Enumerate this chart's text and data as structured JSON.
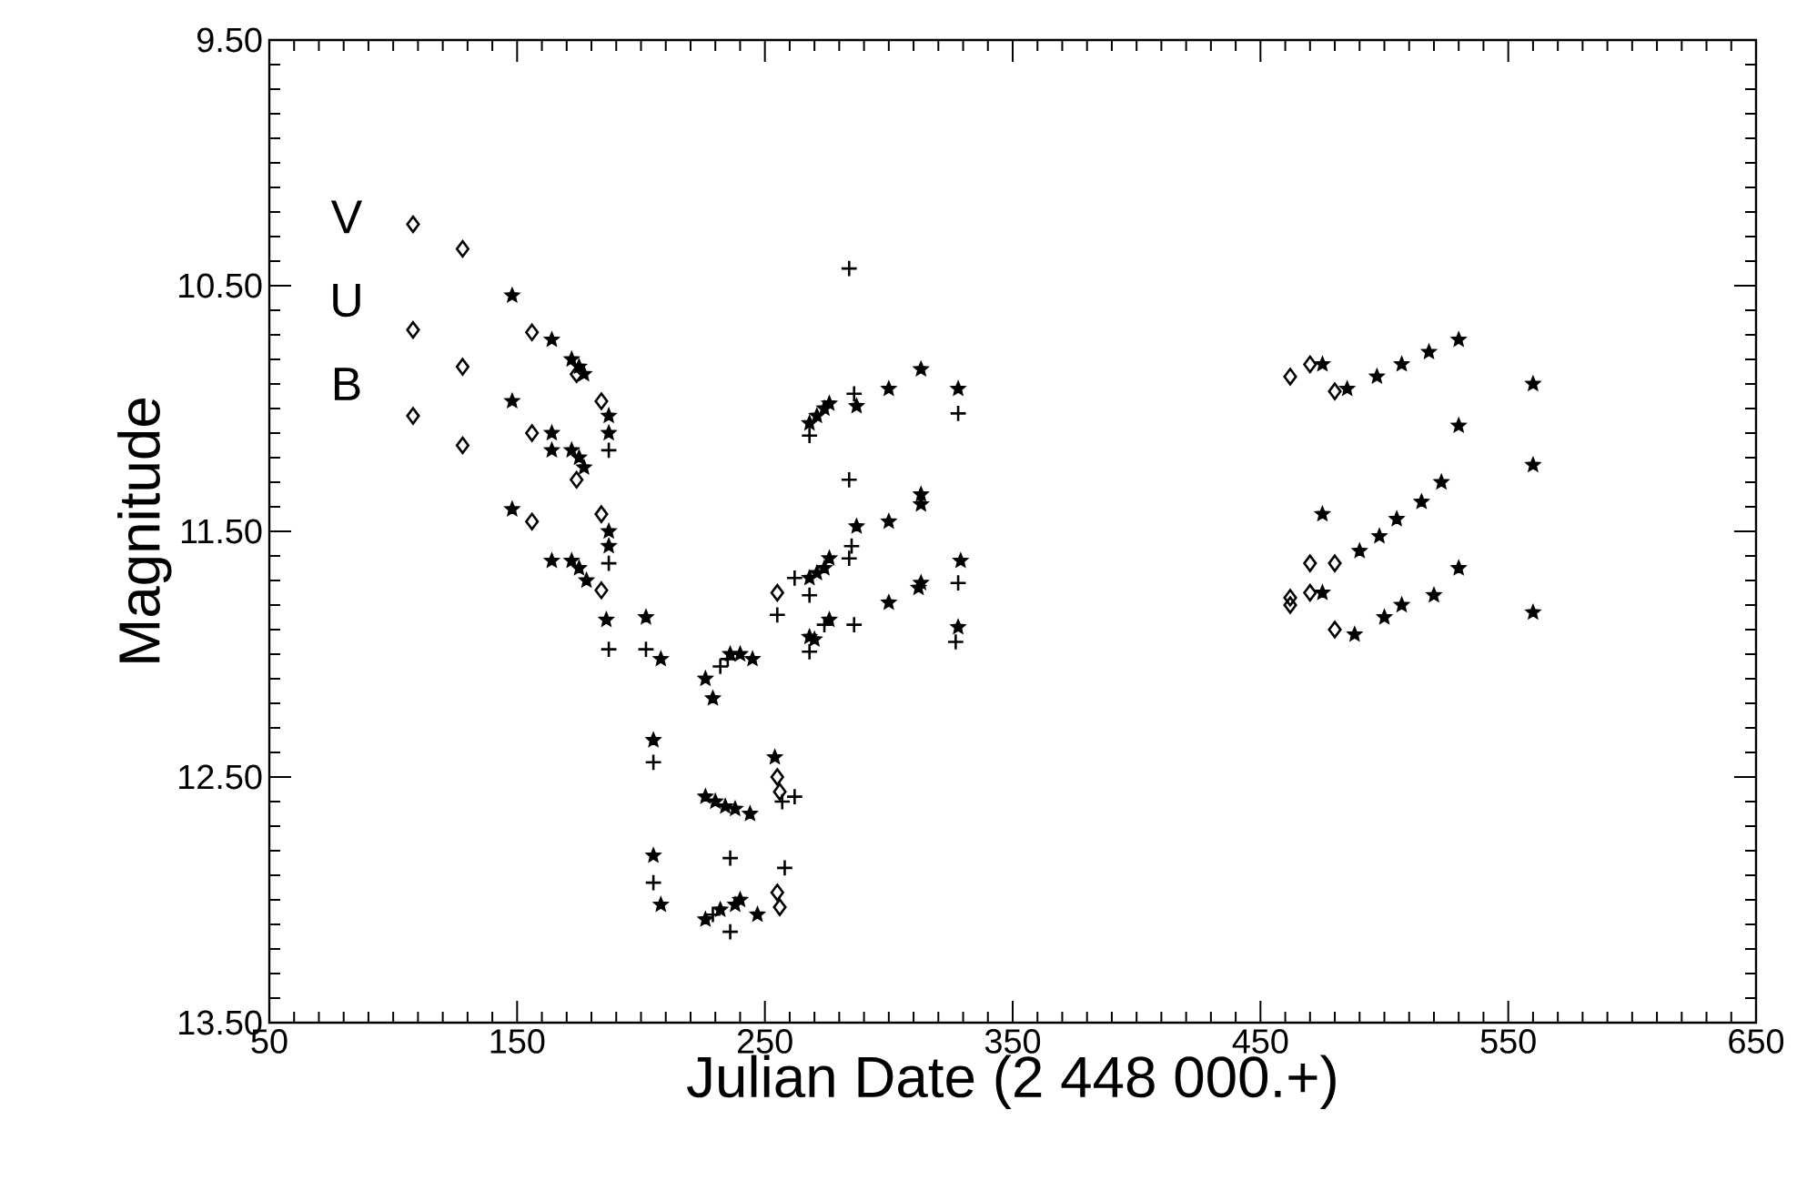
{
  "chart_data": {
    "type": "scatter",
    "xlabel": "Julian Date (2 448 000.+)",
    "ylabel": "Magnitude",
    "xlim": [
      50,
      650
    ],
    "xticks": [
      50,
      150,
      250,
      350,
      450,
      550,
      650
    ],
    "ylim": [
      13.5,
      9.5
    ],
    "yticks": [
      {
        "value": 9.5,
        "label": "9.50"
      },
      {
        "value": 10.5,
        "label": "10.50"
      },
      {
        "value": 11.5,
        "label": "11.50"
      },
      {
        "value": 12.5,
        "label": "12.50"
      },
      {
        "value": 13.5,
        "label": "13.50"
      }
    ],
    "grid": false,
    "annotations": [
      "V",
      "U",
      "B"
    ],
    "series": [
      {
        "marker": "diamond",
        "color": "#000000",
        "x": [
          108,
          108,
          108,
          128,
          128,
          128,
          156,
          156,
          156,
          174,
          174,
          184,
          184,
          184,
          255,
          255,
          256,
          255,
          256,
          462,
          470,
          480,
          462,
          462,
          470,
          470,
          480,
          480
        ],
        "values": [
          10.25,
          10.68,
          11.03,
          10.35,
          10.83,
          11.15,
          10.69,
          11.1,
          11.46,
          10.86,
          11.29,
          10.97,
          11.43,
          11.74,
          11.75,
          12.5,
          12.56,
          12.97,
          13.03,
          10.87,
          10.82,
          10.93,
          11.8,
          11.77,
          11.75,
          11.63,
          11.63,
          11.9
        ]
      },
      {
        "marker": "star",
        "color": "#000000",
        "x": [
          148,
          148,
          148,
          164,
          164,
          164,
          164,
          172,
          175,
          177,
          172,
          175,
          177,
          172,
          175,
          178,
          187,
          187,
          187,
          187,
          186,
          202,
          205,
          205,
          208,
          226,
          229,
          236,
          240,
          245,
          226,
          230,
          234,
          238,
          244,
          254,
          208,
          226,
          232,
          238,
          240,
          247,
          268,
          271,
          274,
          276,
          287,
          300,
          313,
          328,
          313,
          313,
          300,
          287,
          276,
          274,
          271,
          268,
          329,
          313,
          312,
          300,
          276,
          268,
          270,
          328,
          475,
          485,
          497,
          507,
          518,
          530,
          560,
          475,
          490,
          498,
          505,
          515,
          523,
          530,
          560,
          475,
          488,
          500,
          507,
          520,
          530,
          560
        ],
        "values": [
          10.54,
          10.97,
          11.41,
          10.72,
          11.1,
          11.17,
          11.62,
          10.8,
          10.83,
          10.86,
          11.17,
          11.2,
          11.24,
          11.62,
          11.65,
          11.7,
          11.03,
          11.1,
          11.5,
          11.56,
          11.86,
          11.85,
          12.35,
          12.82,
          12.02,
          12.1,
          12.18,
          12.0,
          12.0,
          12.02,
          12.58,
          12.6,
          12.62,
          12.63,
          12.65,
          12.42,
          13.02,
          13.08,
          13.04,
          13.02,
          13.0,
          13.06,
          11.06,
          11.03,
          11.0,
          10.98,
          10.99,
          10.92,
          10.84,
          10.92,
          11.35,
          11.39,
          11.46,
          11.48,
          11.61,
          11.65,
          11.67,
          11.69,
          11.62,
          11.71,
          11.73,
          11.79,
          11.86,
          11.93,
          11.94,
          11.89,
          10.82,
          10.92,
          10.87,
          10.82,
          10.77,
          10.72,
          10.9,
          11.43,
          11.58,
          11.52,
          11.45,
          11.38,
          11.3,
          11.07,
          11.23,
          11.75,
          11.92,
          11.85,
          11.8,
          11.76,
          11.65,
          11.83
        ]
      },
      {
        "marker": "cross",
        "color": "#000000",
        "x": [
          187,
          187,
          187,
          202,
          205,
          205,
          232,
          235,
          236,
          229,
          236,
          255,
          257,
          258,
          262,
          262,
          268,
          286,
          284,
          328,
          284,
          285,
          284,
          268,
          328,
          274,
          286,
          268,
          327
        ],
        "values": [
          11.17,
          11.63,
          11.98,
          11.98,
          12.44,
          12.93,
          12.05,
          12.02,
          12.83,
          13.06,
          13.13,
          11.84,
          12.6,
          12.87,
          12.58,
          11.69,
          11.11,
          10.94,
          10.43,
          11.02,
          11.29,
          11.56,
          11.61,
          11.76,
          11.71,
          11.88,
          11.88,
          11.99,
          11.95
        ]
      }
    ]
  }
}
